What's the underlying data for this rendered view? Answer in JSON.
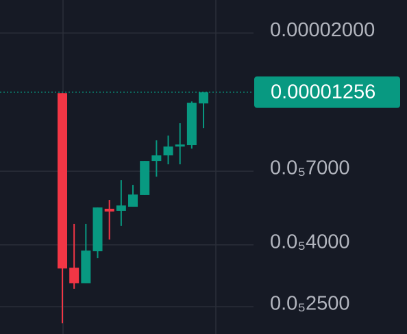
{
  "chart_data": {
    "type": "candlestick",
    "log_scale": true,
    "grid": true,
    "up_color": "#089981",
    "down_color": "#f23645",
    "series": {
      "open": [
        1.246e-05,
        3.31e-06,
        2.94e-06,
        3.75e-06,
        5.18e-06,
        5.1e-06,
        5.26e-06,
        5.75e-06,
        7.45e-06,
        7.77e-06,
        8.33e-06,
        8.4e-06,
        1.153e-05
      ],
      "high": [
        1.246e-05,
        4.62e-06,
        4.62e-06,
        5.23e-06,
        5.54e-06,
        6.44e-06,
        6.21e-06,
        7.45e-06,
        8.71e-06,
        9.03e-06,
        9.92e-06,
        1.17e-05,
        1.256e-05
      ],
      "low": [
        2.17e-06,
        2.82e-06,
        2.94e-06,
        3.56e-06,
        4.1e-06,
        4.55e-06,
        5.26e-06,
        5.75e-06,
        6.61e-06,
        7.26e-06,
        7.26e-06,
        8.18e-06,
        9.56e-06
      ],
      "close": [
        3.29e-06,
        2.94e-06,
        3.77e-06,
        5.23e-06,
        5.07e-06,
        5.31e-06,
        5.77e-06,
        7.45e-06,
        7.77e-06,
        8.31e-06,
        8.44e-06,
        1.159e-05,
        1.256e-05
      ]
    },
    "ylim": [
      2e-06,
      2.53e-05
    ],
    "yticks": [
      {
        "value": 2e-05,
        "label": "0.00002000"
      },
      {
        "value": 7e-06,
        "label": "0.0₅7000"
      },
      {
        "value": 4e-06,
        "label": "0.0₅4000"
      },
      {
        "value": 2.5e-06,
        "label": "0.0₅2500"
      }
    ],
    "last_price": {
      "value": 1.256e-05,
      "label": "0.00001256"
    }
  }
}
